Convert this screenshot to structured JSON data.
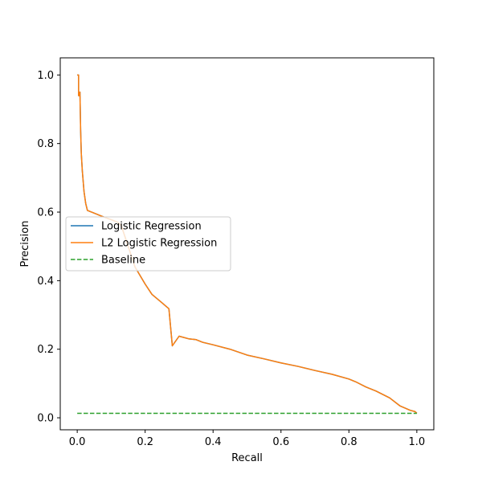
{
  "chart_data": {
    "type": "line",
    "title": "",
    "xlabel": "Recall",
    "ylabel": "Precision",
    "xlim": [
      -0.05,
      1.05
    ],
    "ylim": [
      -0.035,
      1.05
    ],
    "x_ticks": [
      "0.0",
      "0.2",
      "0.4",
      "0.6",
      "0.8",
      "1.0"
    ],
    "y_ticks": [
      "0.0",
      "0.2",
      "0.4",
      "0.6",
      "0.8",
      "1.0"
    ],
    "grid": false,
    "legend_position": "center-left",
    "series": [
      {
        "name": "Logistic Regression",
        "color": "#1f77b4",
        "style": "solid",
        "points": [
          [
            0.0,
            1.0
          ],
          [
            0.004,
            1.0
          ],
          [
            0.004,
            0.94
          ],
          [
            0.006,
            0.94
          ],
          [
            0.008,
            0.95
          ],
          [
            0.01,
            0.84
          ],
          [
            0.012,
            0.77
          ],
          [
            0.015,
            0.72
          ],
          [
            0.02,
            0.66
          ],
          [
            0.025,
            0.625
          ],
          [
            0.03,
            0.605
          ],
          [
            0.05,
            0.597
          ],
          [
            0.08,
            0.585
          ],
          [
            0.1,
            0.578
          ],
          [
            0.12,
            0.57
          ],
          [
            0.13,
            0.56
          ],
          [
            0.15,
            0.5
          ],
          [
            0.17,
            0.44
          ],
          [
            0.2,
            0.39
          ],
          [
            0.22,
            0.36
          ],
          [
            0.25,
            0.335
          ],
          [
            0.27,
            0.318
          ],
          [
            0.28,
            0.21
          ],
          [
            0.3,
            0.238
          ],
          [
            0.33,
            0.23
          ],
          [
            0.35,
            0.228
          ],
          [
            0.37,
            0.22
          ],
          [
            0.4,
            0.213
          ],
          [
            0.45,
            0.2
          ],
          [
            0.5,
            0.183
          ],
          [
            0.55,
            0.172
          ],
          [
            0.6,
            0.16
          ],
          [
            0.65,
            0.15
          ],
          [
            0.7,
            0.138
          ],
          [
            0.75,
            0.127
          ],
          [
            0.8,
            0.113
          ],
          [
            0.82,
            0.105
          ],
          [
            0.85,
            0.09
          ],
          [
            0.88,
            0.078
          ],
          [
            0.92,
            0.058
          ],
          [
            0.95,
            0.035
          ],
          [
            0.98,
            0.022
          ],
          [
            0.995,
            0.018
          ],
          [
            1.0,
            0.013
          ]
        ]
      },
      {
        "name": "L2 Logistic Regression",
        "color": "#ff7f0e",
        "style": "solid",
        "points": [
          [
            0.0,
            1.0
          ],
          [
            0.004,
            1.0
          ],
          [
            0.004,
            0.94
          ],
          [
            0.006,
            0.94
          ],
          [
            0.008,
            0.95
          ],
          [
            0.01,
            0.84
          ],
          [
            0.012,
            0.77
          ],
          [
            0.015,
            0.72
          ],
          [
            0.02,
            0.66
          ],
          [
            0.025,
            0.625
          ],
          [
            0.03,
            0.605
          ],
          [
            0.05,
            0.597
          ],
          [
            0.08,
            0.585
          ],
          [
            0.1,
            0.578
          ],
          [
            0.12,
            0.57
          ],
          [
            0.13,
            0.56
          ],
          [
            0.15,
            0.5
          ],
          [
            0.17,
            0.44
          ],
          [
            0.2,
            0.39
          ],
          [
            0.22,
            0.36
          ],
          [
            0.25,
            0.335
          ],
          [
            0.27,
            0.318
          ],
          [
            0.28,
            0.21
          ],
          [
            0.3,
            0.238
          ],
          [
            0.33,
            0.23
          ],
          [
            0.35,
            0.228
          ],
          [
            0.37,
            0.22
          ],
          [
            0.4,
            0.213
          ],
          [
            0.45,
            0.2
          ],
          [
            0.5,
            0.183
          ],
          [
            0.55,
            0.172
          ],
          [
            0.6,
            0.16
          ],
          [
            0.65,
            0.15
          ],
          [
            0.7,
            0.138
          ],
          [
            0.75,
            0.127
          ],
          [
            0.8,
            0.113
          ],
          [
            0.82,
            0.105
          ],
          [
            0.85,
            0.09
          ],
          [
            0.88,
            0.078
          ],
          [
            0.92,
            0.058
          ],
          [
            0.95,
            0.035
          ],
          [
            0.98,
            0.022
          ],
          [
            0.995,
            0.018
          ],
          [
            1.0,
            0.013
          ]
        ]
      },
      {
        "name": "Baseline",
        "color": "#2ca02c",
        "style": "dashed",
        "points": [
          [
            0.0,
            0.013
          ],
          [
            1.0,
            0.013
          ]
        ]
      }
    ]
  }
}
